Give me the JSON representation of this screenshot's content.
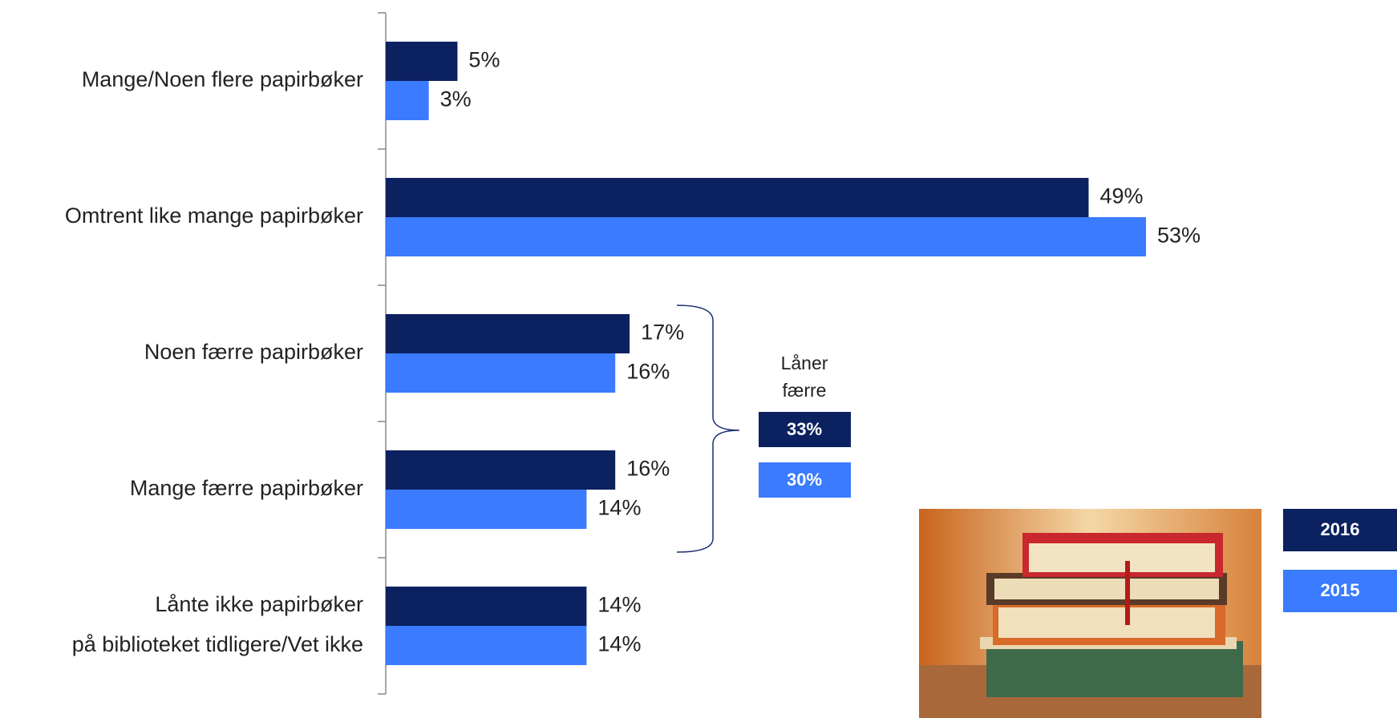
{
  "chart_data": {
    "type": "bar",
    "orientation": "horizontal",
    "categories": [
      "Mange/Noen flere papirbøker",
      "Omtrent like mange papirbøker",
      "Noen færre papirbøker",
      "Mange færre papirbøker",
      "Lånte ikke papirbøker på biblioteket tidligere/Vet ikke"
    ],
    "series": [
      {
        "name": "2016",
        "color": "#0c2160",
        "values": [
          5,
          49,
          17,
          16,
          14
        ],
        "value_labels": [
          "5%",
          "49%",
          "17%",
          "16%",
          "14%"
        ]
      },
      {
        "name": "2015",
        "color": "#3a7bff",
        "values": [
          3,
          53,
          16,
          14,
          14
        ],
        "value_labels": [
          "3%",
          "53%",
          "16%",
          "14%",
          "14%"
        ]
      }
    ],
    "annotation": {
      "text": "Låner færre",
      "value_labels": [
        "33%",
        "30%"
      ]
    }
  }
}
